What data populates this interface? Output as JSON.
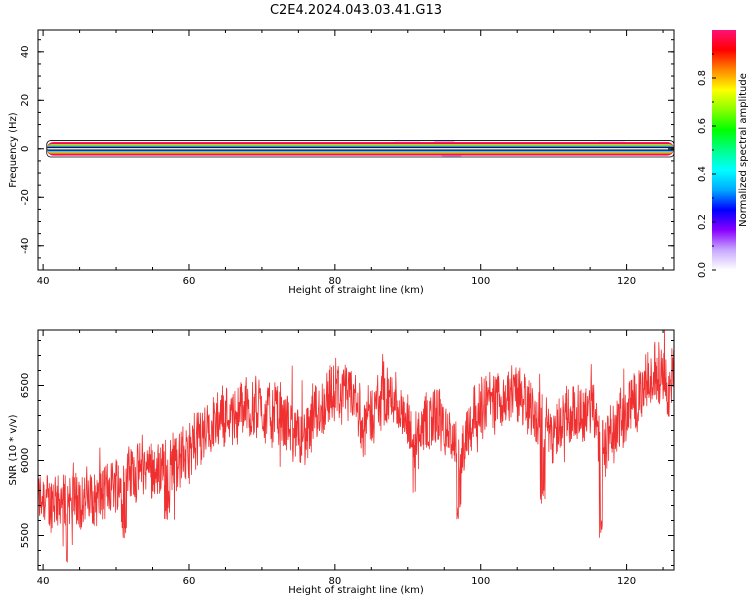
{
  "title": "C2E4.2024.043.03.41.G13",
  "chart_data": [
    {
      "type": "heatmap",
      "xlabel": "Height of straight line (km)",
      "ylabel": "Frequency (Hz)",
      "xlim": [
        39.3,
        126.5
      ],
      "ylim": [
        -50,
        49
      ],
      "xticks": [
        40,
        60,
        80,
        100,
        120
      ],
      "yticks": [
        -40,
        -20,
        0,
        20,
        40
      ],
      "band": {
        "x_start": 40.5,
        "x_end": 126.5,
        "frequency_center": 0,
        "halfwidths": [
          {
            "value": 0.0,
            "hz": 0.4
          },
          {
            "value": 0.2,
            "hz": 0.9
          },
          {
            "value": 0.5,
            "hz": 1.5
          },
          {
            "value": 0.8,
            "hz": 2.0
          },
          {
            "value": 0.95,
            "hz": 2.4
          },
          {
            "value": 1.0,
            "hz": 2.8
          }
        ]
      },
      "faint_blobs": [
        {
          "x": 82,
          "hz": 1.5,
          "w": 3
        },
        {
          "x": 90,
          "hz": 1.8,
          "w": 4
        },
        {
          "x": 95,
          "hz": 2.2,
          "w": 3
        },
        {
          "x": 96,
          "hz": -2.0,
          "w": 3
        },
        {
          "x": 105,
          "hz": 1.5,
          "w": 4
        },
        {
          "x": 112,
          "hz": 1.6,
          "w": 3
        },
        {
          "x": 118,
          "hz": 1.8,
          "w": 4
        },
        {
          "x": 124,
          "hz": 1.6,
          "w": 4
        }
      ],
      "grid": false
    },
    {
      "type": "line",
      "xlabel": "Height of straight line (km)",
      "ylabel": "SNR (10 * v/v)",
      "xlim": [
        39.3,
        126.5
      ],
      "ylim": [
        5270,
        6870
      ],
      "xticks": [
        40,
        60,
        80,
        100,
        120
      ],
      "yticks": [
        5500,
        6000,
        6500
      ],
      "series_color": "#f03030",
      "trend": [
        [
          39.3,
          5720
        ],
        [
          44,
          5740
        ],
        [
          48,
          5760
        ],
        [
          52,
          5930
        ],
        [
          56,
          5960
        ],
        [
          60,
          6050
        ],
        [
          63,
          6260
        ],
        [
          67,
          6340
        ],
        [
          70,
          6340
        ],
        [
          73,
          6270
        ],
        [
          76,
          6120
        ],
        [
          79,
          6380
        ],
        [
          82,
          6470
        ],
        [
          84,
          6230
        ],
        [
          87,
          6460
        ],
        [
          89,
          6320
        ],
        [
          91,
          6160
        ],
        [
          94,
          6320
        ],
        [
          97,
          6000
        ],
        [
          99,
          6330
        ],
        [
          101,
          6390
        ],
        [
          103,
          6450
        ],
        [
          106,
          6440
        ],
        [
          108,
          6280
        ],
        [
          110,
          6160
        ],
        [
          112,
          6280
        ],
        [
          115,
          6330
        ],
        [
          117,
          6080
        ],
        [
          119,
          6270
        ],
        [
          122,
          6430
        ],
        [
          124,
          6570
        ],
        [
          126.5,
          6540
        ]
      ],
      "dips": [
        [
          43,
          5320
        ],
        [
          51,
          5480
        ],
        [
          57,
          5600
        ],
        [
          91,
          5750
        ],
        [
          97,
          5590
        ],
        [
          108.5,
          5700
        ],
        [
          116.5,
          5480
        ]
      ],
      "noise_amplitude": 240,
      "grid": false
    }
  ],
  "colorbar": {
    "label": "Normalized spectral amplitude",
    "min": 0,
    "max": 1,
    "ticks": [
      "0.0",
      "0.2",
      "0.4",
      "0.6",
      "0.8"
    ],
    "tick_values": [
      0.0,
      0.2,
      0.4,
      0.6,
      0.8
    ],
    "colors": [
      "#ffffff",
      "#c8a8ff",
      "#8800ff",
      "#0000ff",
      "#00aaff",
      "#00ffff",
      "#00ff88",
      "#00ff00",
      "#88ff00",
      "#ffff00",
      "#ff8800",
      "#ff0000",
      "#ff1177"
    ]
  }
}
